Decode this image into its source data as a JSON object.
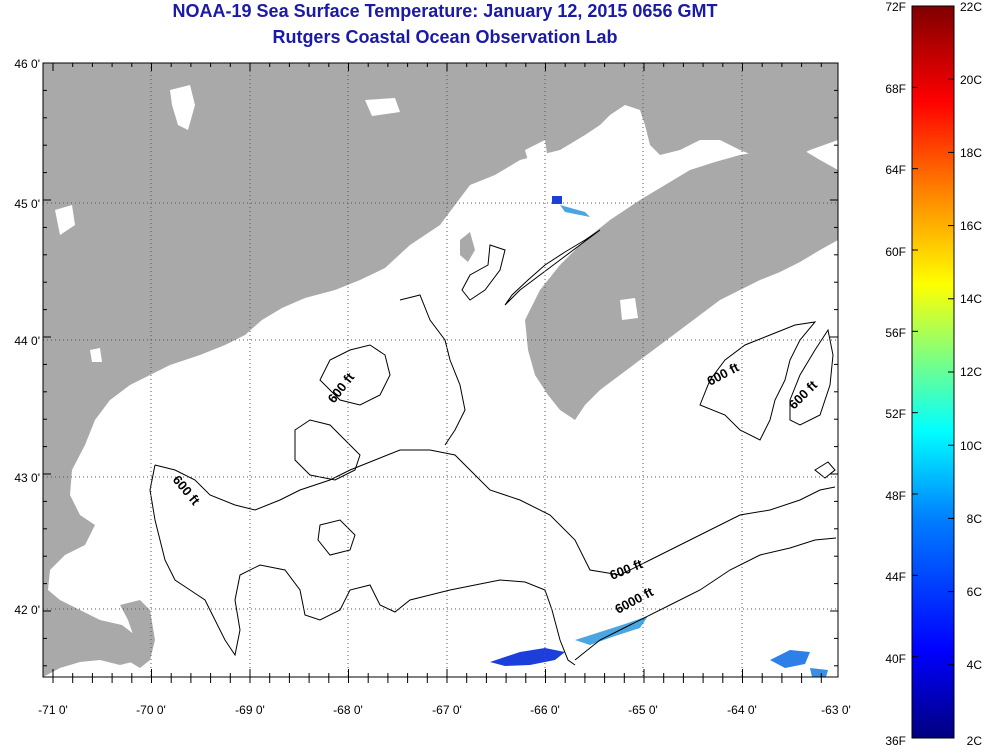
{
  "header": {
    "title": "NOAA-19 Sea Surface Temperature:  January 12, 2015 0656 GMT",
    "subtitle": "Rutgers Coastal Ocean Observation Lab"
  },
  "map": {
    "lat_labels": [
      "46 0'",
      "45 0'",
      "44 0'",
      "43 0'",
      "42 0'"
    ],
    "lon_labels": [
      "-71 0'",
      "-70 0'",
      "-69 0'",
      "-68 0'",
      "-67 0'",
      "-66 0'",
      "-65 0'",
      "-64 0'",
      "-63 0'"
    ],
    "contour_labels": [
      "600 ft",
      "600 ft",
      "600 ft",
      "600 ft",
      "600 ft",
      "6000 ft"
    ],
    "colors": {
      "land": "#a9a9a9",
      "ocean": "#ffffff",
      "contour": "#000000",
      "label": "#1a1aa6"
    }
  },
  "colorbar": {
    "fahrenheit_labels": [
      "72F",
      "68F",
      "64F",
      "60F",
      "56F",
      "52F",
      "48F",
      "44F",
      "40F",
      "36F"
    ],
    "celsius_labels": [
      "22C",
      "20C",
      "18C",
      "16C",
      "14C",
      "12C",
      "10C",
      "8C",
      "6C",
      "4C",
      "2C"
    ],
    "gradient_colors": [
      "#00007f",
      "#0000ff",
      "#007fff",
      "#00ffff",
      "#7fff7f",
      "#ffff00",
      "#ff7f00",
      "#ff0000",
      "#7f0000"
    ]
  }
}
